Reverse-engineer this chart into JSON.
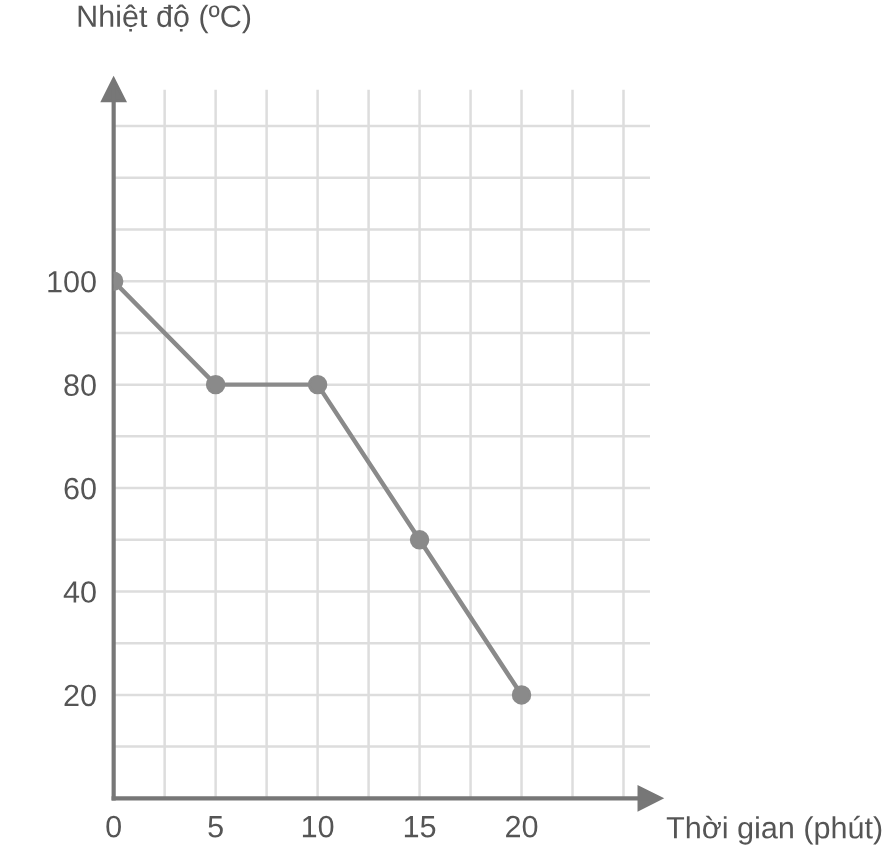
{
  "chart_data": {
    "type": "line",
    "xlabel": "Thời gian (phút)",
    "ylabel": "Nhiệt độ (ºC)",
    "x": [
      0,
      5,
      10,
      15,
      20
    ],
    "series": [
      {
        "color": "#8a8a8a",
        "values": [
          100,
          80,
          80,
          50,
          20
        ]
      }
    ],
    "marker": "circle",
    "line_style": "solid",
    "xlim": [
      0,
      26.3
    ],
    "ylim": [
      0,
      137
    ],
    "xticks": [
      0,
      {
        "value": 2.5,
        "label": null
      },
      5,
      {
        "value": 7.5,
        "label": null
      },
      10,
      {
        "value": 12.5,
        "label": null
      },
      15,
      {
        "value": 17.5,
        "label": null
      },
      20,
      {
        "value": 22.5,
        "label": null
      },
      {
        "value": 25,
        "label": null
      }
    ],
    "yticks": [
      {
        "value": 10,
        "label": null
      },
      20,
      {
        "value": 30,
        "label": null
      },
      40,
      {
        "value": 50,
        "label": null
      },
      60,
      {
        "value": 70,
        "label": null
      },
      80,
      {
        "value": 90,
        "label": null
      },
      100,
      {
        "value": 110,
        "label": null
      },
      {
        "value": 120,
        "label": null
      },
      {
        "value": 130,
        "label": null
      }
    ],
    "grid": true
  }
}
